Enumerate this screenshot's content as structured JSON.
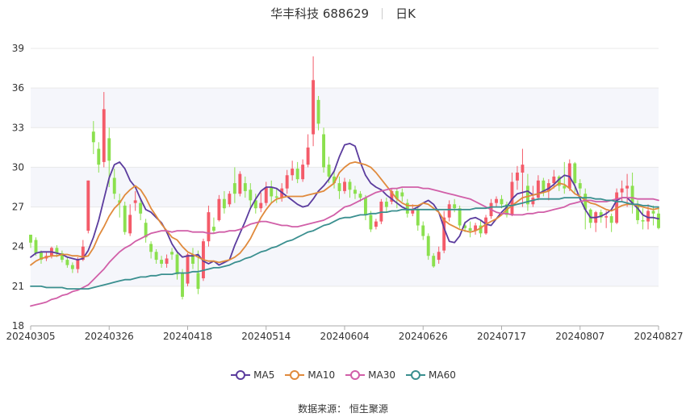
{
  "header": {
    "stock_name": "华丰科技 688629",
    "period": "日K"
  },
  "source": "数据来源： 恒生聚源",
  "colors": {
    "up": "#f45b69",
    "down": "#8be04e",
    "grid": "#e9e9e9",
    "band": "#f5f6fb"
  },
  "chart_data": {
    "type": "candlestick",
    "ylim": [
      18,
      39
    ],
    "yticks": [
      18,
      21,
      24,
      27,
      30,
      33,
      36,
      39
    ],
    "xtick_labels": [
      "20240305",
      "20240326",
      "20240418",
      "20240514",
      "20240604",
      "20240626",
      "20240717",
      "20240807",
      "20240827"
    ],
    "series": [
      {
        "name": "MA5",
        "color": "#5b3c9e",
        "values": [
          23.2,
          23.5,
          23.6,
          23.6,
          23.6,
          23.5,
          23.4,
          23.2,
          23.1,
          23.0,
          23.1,
          23.7,
          24.7,
          26.0,
          27.6,
          29.2,
          30.2,
          30.4,
          29.9,
          29.0,
          28.5,
          27.6,
          26.8,
          26.6,
          26.2,
          25.8,
          25.1,
          24.2,
          23.6,
          23.2,
          23.3,
          23.3,
          23.4,
          22.9,
          22.7,
          22.9,
          22.6,
          22.8,
          23.0,
          24.1,
          25.0,
          25.9,
          26.9,
          27.6,
          28.2,
          28.5,
          28.5,
          28.4,
          28.1,
          27.8,
          27.5,
          27.2,
          27.0,
          27.1,
          27.6,
          28.2,
          28.6,
          29.1,
          29.7,
          30.8,
          31.7,
          31.8,
          31.6,
          30.4,
          29.4,
          28.8,
          28.5,
          28.3,
          27.9,
          27.6,
          27.3,
          27.0,
          26.8,
          26.8,
          27.0,
          27.3,
          27.5,
          27.2,
          26.6,
          25.4,
          24.4,
          24.3,
          24.8,
          25.8,
          26.1,
          26.2,
          26.0,
          25.7,
          25.6,
          26.1,
          26.6,
          27.0,
          27.6,
          28.0,
          28.1,
          28.2,
          27.9,
          28.0,
          28.2,
          28.4,
          28.7,
          29.1,
          29.4,
          29.3,
          28.6,
          27.6,
          26.8,
          26.2,
          26.2,
          26.3,
          26.5,
          26.8,
          27.5,
          27.7,
          27.7,
          27.3,
          26.9,
          26.4,
          26.2,
          26.2,
          26.1
        ]
      },
      {
        "name": "MA10",
        "color": "#e08a3c",
        "values": [
          22.6,
          22.9,
          23.1,
          23.2,
          23.3,
          23.3,
          23.4,
          23.4,
          23.3,
          23.3,
          23.2,
          23.3,
          23.9,
          24.8,
          25.5,
          26.3,
          26.9,
          27.3,
          27.9,
          28.3,
          28.6,
          28.3,
          27.7,
          26.9,
          26.3,
          25.7,
          25.2,
          24.7,
          24.5,
          24.0,
          23.6,
          23.4,
          23.2,
          23.0,
          22.9,
          22.9,
          22.8,
          22.9,
          23.0,
          23.2,
          23.5,
          24.0,
          24.6,
          25.4,
          26.2,
          26.8,
          27.3,
          27.6,
          27.7,
          27.8,
          27.8,
          27.8,
          27.8,
          27.9,
          28.0,
          28.1,
          28.2,
          28.5,
          28.8,
          29.6,
          30.0,
          30.3,
          30.4,
          30.3,
          30.2,
          30.0,
          29.6,
          29.1,
          28.6,
          28.1,
          27.6,
          27.3,
          27.1,
          27.1,
          27.1,
          27.3,
          27.2,
          26.9,
          26.6,
          26.0,
          25.7,
          25.5,
          25.3,
          25.2,
          25.1,
          25.2,
          25.4,
          25.7,
          25.9,
          26.1,
          26.4,
          26.8,
          27.1,
          27.4,
          27.7,
          27.8,
          27.9,
          28.0,
          28.1,
          28.2,
          28.5,
          28.8,
          28.7,
          28.4,
          28.0,
          27.8,
          27.5,
          27.3,
          27.2,
          27.0,
          26.8,
          26.7,
          26.9,
          27.1,
          27.2,
          27.2,
          27.1,
          27.0,
          26.9,
          26.8,
          26.9
        ]
      },
      {
        "name": "MA30",
        "color": "#d15fa8",
        "values": [
          19.5,
          19.6,
          19.7,
          19.8,
          20.0,
          20.1,
          20.3,
          20.4,
          20.6,
          20.7,
          20.9,
          21.1,
          21.5,
          21.9,
          22.3,
          22.8,
          23.2,
          23.6,
          23.9,
          24.1,
          24.4,
          24.6,
          24.8,
          25.0,
          25.1,
          25.2,
          25.2,
          25.1,
          25.2,
          25.2,
          25.2,
          25.1,
          25.1,
          25.1,
          25.0,
          25.0,
          25.1,
          25.1,
          25.2,
          25.2,
          25.3,
          25.5,
          25.7,
          25.8,
          25.9,
          25.9,
          25.8,
          25.7,
          25.6,
          25.6,
          25.5,
          25.5,
          25.6,
          25.7,
          25.8,
          25.9,
          26.0,
          26.2,
          26.4,
          26.7,
          27.0,
          27.1,
          27.3,
          27.5,
          27.7,
          27.9,
          28.1,
          28.2,
          28.3,
          28.4,
          28.4,
          28.5,
          28.5,
          28.5,
          28.5,
          28.4,
          28.4,
          28.3,
          28.2,
          28.1,
          28.0,
          27.9,
          27.8,
          27.7,
          27.6,
          27.4,
          27.2,
          27.0,
          26.8,
          26.6,
          26.5,
          26.5,
          26.4,
          26.4,
          26.4,
          26.5,
          26.5,
          26.6,
          26.6,
          26.7,
          26.8,
          26.9,
          27.0,
          27.2,
          27.3,
          27.4,
          27.5,
          27.5,
          27.4,
          27.4,
          27.4,
          27.5,
          27.6,
          27.7,
          27.7,
          27.7,
          27.6,
          27.6,
          27.6,
          27.6,
          27.5
        ]
      },
      {
        "name": "MA60",
        "color": "#3a8f8f",
        "values": [
          21.0,
          21.0,
          21.0,
          20.9,
          20.9,
          20.9,
          20.9,
          20.8,
          20.8,
          20.8,
          20.8,
          20.8,
          20.9,
          21.0,
          21.1,
          21.2,
          21.3,
          21.4,
          21.5,
          21.5,
          21.6,
          21.7,
          21.7,
          21.8,
          21.8,
          21.9,
          21.9,
          21.9,
          22.0,
          22.0,
          22.0,
          22.1,
          22.1,
          22.2,
          22.3,
          22.4,
          22.4,
          22.5,
          22.6,
          22.8,
          22.9,
          23.1,
          23.2,
          23.4,
          23.6,
          23.7,
          23.9,
          24.0,
          24.2,
          24.4,
          24.5,
          24.7,
          24.9,
          25.1,
          25.2,
          25.4,
          25.6,
          25.7,
          25.9,
          26.1,
          26.2,
          26.2,
          26.3,
          26.4,
          26.4,
          26.5,
          26.5,
          26.6,
          26.6,
          26.7,
          26.7,
          26.8,
          26.8,
          26.8,
          26.8,
          26.8,
          26.8,
          26.8,
          26.8,
          26.8,
          26.8,
          26.8,
          26.8,
          26.8,
          26.8,
          26.9,
          26.9,
          26.9,
          27.0,
          27.0,
          27.0,
          27.1,
          27.1,
          27.2,
          27.3,
          27.4,
          27.5,
          27.6,
          27.6,
          27.6,
          27.6,
          27.6,
          27.7,
          27.7,
          27.7,
          27.7,
          27.7,
          27.7,
          27.6,
          27.6,
          27.5,
          27.5,
          27.4,
          27.4,
          27.3,
          27.2,
          27.2,
          27.1,
          27.1,
          27.0,
          27.0
        ]
      }
    ],
    "candles": [
      [
        24.9,
        24.3,
        24.7,
        23.9
      ],
      [
        24.5,
        23.5,
        24.7,
        23.3
      ],
      [
        23.6,
        23.0,
        23.7,
        22.7
      ],
      [
        23.1,
        23.3,
        23.6,
        22.9
      ],
      [
        23.3,
        23.9,
        24.0,
        23.1
      ],
      [
        23.9,
        23.5,
        24.1,
        23.2
      ],
      [
        23.5,
        23.0,
        23.7,
        22.8
      ],
      [
        23.0,
        22.6,
        23.2,
        22.4
      ],
      [
        22.6,
        22.3,
        22.8,
        22.0
      ],
      [
        22.3,
        23.0,
        23.2,
        22.0
      ],
      [
        23.0,
        24.0,
        24.5,
        22.9
      ],
      [
        25.2,
        29.0,
        29.0,
        25.0
      ],
      [
        32.7,
        31.9,
        33.5,
        31.0
      ],
      [
        31.4,
        30.2,
        31.9,
        29.6
      ],
      [
        30.4,
        34.4,
        35.7,
        30.0
      ],
      [
        32.2,
        30.5,
        33.0,
        28.5
      ],
      [
        29.2,
        28.0,
        29.9,
        27.6
      ],
      [
        27.5,
        27.3,
        28.0,
        26.2
      ],
      [
        27.1,
        25.1,
        27.4,
        24.9
      ],
      [
        25.0,
        26.4,
        27.2,
        24.8
      ],
      [
        27.3,
        27.5,
        28.2,
        26.7
      ],
      [
        27.3,
        26.5,
        27.6,
        26.0
      ],
      [
        25.8,
        24.7,
        26.1,
        24.3
      ],
      [
        24.2,
        23.6,
        24.4,
        23.1
      ],
      [
        23.6,
        23.0,
        23.8,
        22.7
      ],
      [
        23.0,
        22.7,
        23.3,
        22.4
      ],
      [
        22.7,
        23.1,
        23.4,
        22.4
      ],
      [
        23.6,
        23.4,
        23.9,
        23.0
      ],
      [
        23.4,
        21.9,
        23.6,
        21.5
      ],
      [
        22.0,
        20.2,
        22.3,
        20.0
      ],
      [
        21.2,
        23.4,
        23.5,
        21.0
      ],
      [
        23.4,
        22.7,
        23.9,
        22.3
      ],
      [
        22.0,
        20.8,
        23.7,
        20.4
      ],
      [
        21.6,
        24.4,
        24.6,
        21.4
      ],
      [
        24.4,
        26.6,
        27.1,
        24.0
      ],
      [
        25.5,
        25.2,
        26.2,
        25.0
      ],
      [
        26.0,
        27.6,
        27.9,
        25.9
      ],
      [
        27.6,
        26.9,
        28.2,
        26.5
      ],
      [
        27.2,
        28.0,
        28.2,
        27.0
      ],
      [
        28.8,
        28.0,
        30.0,
        27.3
      ],
      [
        28.0,
        29.5,
        29.7,
        27.8
      ],
      [
        28.8,
        28.2,
        29.3,
        27.7
      ],
      [
        28.3,
        27.5,
        28.8,
        27.0
      ],
      [
        27.5,
        26.9,
        28.0,
        26.5
      ],
      [
        26.9,
        27.3,
        28.1,
        26.6
      ],
      [
        27.3,
        28.5,
        28.9,
        27.1
      ],
      [
        28.5,
        27.8,
        29.0,
        27.3
      ],
      [
        27.8,
        27.7,
        28.4,
        27.3
      ],
      [
        27.7,
        28.4,
        28.8,
        27.4
      ],
      [
        28.4,
        29.4,
        29.8,
        28.0
      ],
      [
        29.4,
        29.9,
        30.5,
        29.0
      ],
      [
        29.9,
        29.1,
        30.4,
        28.8
      ],
      [
        29.1,
        30.2,
        30.6,
        28.9
      ],
      [
        30.2,
        31.5,
        32.5,
        30.0
      ],
      [
        32.5,
        36.6,
        38.4,
        31.6
      ],
      [
        35.1,
        33.3,
        35.4,
        32.8
      ],
      [
        32.5,
        30.0,
        33.0,
        29.6
      ],
      [
        30.2,
        29.3,
        30.8,
        28.8
      ],
      [
        29.3,
        28.8,
        29.7,
        28.4
      ],
      [
        28.8,
        28.2,
        29.3,
        27.6
      ],
      [
        28.2,
        28.9,
        29.2,
        28.0
      ],
      [
        28.9,
        28.3,
        29.1,
        27.7
      ],
      [
        28.3,
        28.0,
        28.6,
        27.6
      ],
      [
        28.0,
        27.7,
        28.2,
        27.4
      ],
      [
        27.7,
        26.4,
        27.9,
        26.0
      ],
      [
        26.4,
        25.3,
        26.7,
        25.1
      ],
      [
        25.5,
        25.9,
        26.1,
        25.3
      ],
      [
        25.9,
        27.4,
        27.6,
        25.7
      ],
      [
        27.4,
        27.0,
        27.7,
        26.6
      ],
      [
        27.4,
        28.2,
        28.4,
        27.2
      ],
      [
        28.2,
        27.6,
        28.4,
        26.9
      ],
      [
        28.1,
        27.8,
        28.4,
        27.4
      ],
      [
        27.3,
        26.5,
        27.6,
        26.2
      ],
      [
        26.5,
        26.8,
        27.2,
        26.3
      ],
      [
        26.8,
        25.6,
        27.1,
        25.2
      ],
      [
        25.6,
        24.8,
        25.9,
        24.5
      ],
      [
        24.8,
        23.3,
        25.0,
        23.0
      ],
      [
        23.3,
        22.5,
        23.5,
        22.4
      ],
      [
        23.0,
        23.6,
        24.0,
        22.7
      ],
      [
        23.7,
        26.2,
        26.7,
        23.5
      ],
      [
        26.2,
        27.2,
        27.5,
        25.9
      ],
      [
        27.2,
        26.9,
        27.6,
        26.6
      ],
      [
        26.9,
        25.6,
        27.1,
        25.4
      ],
      [
        25.6,
        25.4,
        25.9,
        25.1
      ],
      [
        25.4,
        25.2,
        25.9,
        24.7
      ],
      [
        25.2,
        25.6,
        25.8,
        24.9
      ],
      [
        25.6,
        25.0,
        26.0,
        24.7
      ],
      [
        25.0,
        26.2,
        26.4,
        24.9
      ],
      [
        26.3,
        27.3,
        27.6,
        26.1
      ],
      [
        27.3,
        27.6,
        27.8,
        27.0
      ],
      [
        27.6,
        27.2,
        27.9,
        26.9
      ],
      [
        27.2,
        26.4,
        27.4,
        26.2
      ],
      [
        26.4,
        28.9,
        29.6,
        26.3
      ],
      [
        29.0,
        29.6,
        30.1,
        28.3
      ],
      [
        29.6,
        30.2,
        31.4,
        27.0
      ],
      [
        28.6,
        27.2,
        29.5,
        26.7
      ],
      [
        27.2,
        27.7,
        28.6,
        27.0
      ],
      [
        27.7,
        29.0,
        29.4,
        27.5
      ],
      [
        29.0,
        28.2,
        29.2,
        27.8
      ],
      [
        28.2,
        28.8,
        29.1,
        27.5
      ],
      [
        28.8,
        29.3,
        29.8,
        28.4
      ],
      [
        29.3,
        28.6,
        29.4,
        28.2
      ],
      [
        28.6,
        28.4,
        30.4,
        28.0
      ],
      [
        28.4,
        30.3,
        30.6,
        28.2
      ],
      [
        30.3,
        28.8,
        30.4,
        28.1
      ],
      [
        28.8,
        28.4,
        29.1,
        27.9
      ],
      [
        28.0,
        26.8,
        28.4,
        25.3
      ],
      [
        26.8,
        25.8,
        26.9,
        25.4
      ],
      [
        25.8,
        26.6,
        26.7,
        25.1
      ],
      [
        26.6,
        26.2,
        26.8,
        25.8
      ],
      [
        26.2,
        26.3,
        26.7,
        25.4
      ],
      [
        26.3,
        25.8,
        26.5,
        25.1
      ],
      [
        25.8,
        28.1,
        28.4,
        25.7
      ],
      [
        28.1,
        28.4,
        29.0,
        27.4
      ],
      [
        28.4,
        28.6,
        29.5,
        27.0
      ],
      [
        28.6,
        27.2,
        29.6,
        26.5
      ],
      [
        27.2,
        26.0,
        27.5,
        25.7
      ],
      [
        26.0,
        25.9,
        26.9,
        25.3
      ],
      [
        25.9,
        26.7,
        27.2,
        25.3
      ],
      [
        26.7,
        26.5,
        27.1,
        25.6
      ],
      [
        26.5,
        25.4,
        27.0,
        25.3
      ]
    ]
  }
}
